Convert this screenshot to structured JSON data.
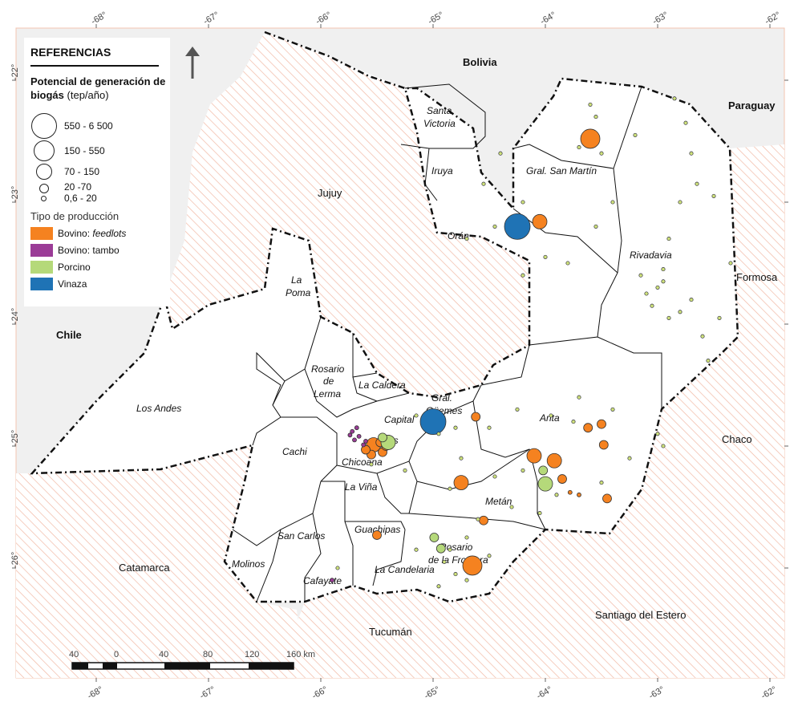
{
  "legend": {
    "title": "REFERENCIAS",
    "size_title": "Potencial de generación de biogás",
    "size_unit": "(tep/año)",
    "sizes": [
      {
        "label": "550 - 6 500"
      },
      {
        "label": "150 - 550"
      },
      {
        "label": "70 - 150"
      },
      {
        "label": "20 -70"
      },
      {
        "label": "0,6 - 20"
      }
    ],
    "type_title": "Tipo de producción",
    "types": [
      {
        "prefix": "Bovino: ",
        "label": "feedlots",
        "italic": true,
        "color": "#F58220"
      },
      {
        "prefix": "",
        "label": "Bovino: tambo",
        "italic": false,
        "color": "#9B3C97"
      },
      {
        "prefix": "",
        "label": "Porcino",
        "italic": false,
        "color": "#B5D97A"
      },
      {
        "prefix": "",
        "label": "Vinaza",
        "italic": false,
        "color": "#1F73B5"
      }
    ]
  },
  "axes": {
    "longitudes": [
      "-68°",
      "-67°",
      "-66°",
      "-65°",
      "-64°",
      "-63°",
      "-62°"
    ],
    "latitudes": [
      "-22°",
      "-23°",
      "-24°",
      "-25°",
      "-26°"
    ]
  },
  "countries": {
    "bolivia": "Bolivia",
    "paraguay": "Paraguay",
    "chile": "Chile"
  },
  "provinces": {
    "jujuy": "Jujuy",
    "formosa": "Formosa",
    "chaco": "Chaco",
    "catamarca": "Catamarca",
    "tucuman": "Tucumán",
    "santiago": "Santiago del Estero"
  },
  "departments": {
    "santa_victoria_1": "Santa",
    "santa_victoria_2": "Victoria",
    "iruya": "Iruya",
    "san_martin": "Gral. San Martín",
    "oran": "Orán",
    "rivadavia": "Rivadavia",
    "la_poma_1": "La",
    "la_poma_2": "Poma",
    "los_andes": "Los Andes",
    "rosario_lerma_1": "Rosario",
    "rosario_lerma_2": "de",
    "rosario_lerma_3": "Lerma",
    "la_caldera": "La Caldera",
    "guemes_1": "Gral.",
    "guemes_2": "Güemes",
    "capital": "Capital",
    "cerrillos": "rrillos",
    "anta": "Anta",
    "cachi": "Cachi",
    "chicoana": "Chicoana",
    "la_vina": "La Viña",
    "metan": "Metán",
    "guachipas": "Guachipas",
    "san_carlos": "San Carlos",
    "molinos": "Molinos",
    "rosario_frontera_1": "Rosario",
    "rosario_frontera_2": "de la Frontera",
    "la_candelaria": "La Candelaria",
    "cafayate": "Cafayate"
  },
  "scale": {
    "unit": "km",
    "labels": [
      "40",
      "0",
      "40",
      "80",
      "120",
      "160 km"
    ]
  },
  "points": [
    {
      "type": "vinaza",
      "size": 5,
      "lon": -64.25,
      "lat": -23.2
    },
    {
      "type": "vinaza",
      "size": 5,
      "lon": -65.0,
      "lat": -24.8
    },
    {
      "type": "feedlots",
      "size": 4,
      "lon": -63.6,
      "lat": -22.48
    },
    {
      "type": "feedlots",
      "size": 3,
      "lon": -64.05,
      "lat": -23.16
    },
    {
      "type": "feedlots",
      "size": 3,
      "lon": -63.92,
      "lat": -25.12
    },
    {
      "type": "feedlots",
      "size": 3,
      "lon": -64.1,
      "lat": -25.08
    },
    {
      "type": "feedlots",
      "size": 4,
      "lon": -64.65,
      "lat": -25.98
    },
    {
      "type": "feedlots",
      "size": 3,
      "lon": -64.75,
      "lat": -25.3
    },
    {
      "type": "feedlots",
      "size": 2,
      "lon": -64.62,
      "lat": -24.76
    },
    {
      "type": "feedlots",
      "size": 2,
      "lon": -63.5,
      "lat": -24.82
    },
    {
      "type": "feedlots",
      "size": 2,
      "lon": -63.48,
      "lat": -24.99
    },
    {
      "type": "feedlots",
      "size": 2,
      "lon": -63.85,
      "lat": -25.27
    },
    {
      "type": "feedlots",
      "size": 2,
      "lon": -63.45,
      "lat": -25.43
    },
    {
      "type": "feedlots",
      "size": 2,
      "lon": -64.55,
      "lat": -25.61
    },
    {
      "type": "feedlots",
      "size": 2,
      "lon": -65.5,
      "lat": -25.73
    },
    {
      "type": "feedlots",
      "size": 3,
      "lon": -65.53,
      "lat": -24.99
    },
    {
      "type": "feedlots",
      "size": 2,
      "lon": -65.47,
      "lat": -24.97
    },
    {
      "type": "feedlots",
      "size": 2,
      "lon": -65.45,
      "lat": -25.05
    },
    {
      "type": "feedlots",
      "size": 2,
      "lon": -65.55,
      "lat": -25.07
    },
    {
      "type": "feedlots",
      "size": 2,
      "lon": -65.42,
      "lat": -25.0
    },
    {
      "type": "feedlots",
      "size": 2,
      "lon": -65.6,
      "lat": -25.03
    },
    {
      "type": "feedlots",
      "size": 2,
      "lon": -63.62,
      "lat": -24.85
    },
    {
      "type": "feedlots",
      "size": 1,
      "lon": -63.78,
      "lat": -25.38
    },
    {
      "type": "feedlots",
      "size": 1,
      "lon": -63.7,
      "lat": -25.4
    },
    {
      "type": "porcino",
      "size": 3,
      "lon": -64.0,
      "lat": -25.31
    },
    {
      "type": "porcino",
      "size": 3,
      "lon": -65.4,
      "lat": -24.97
    },
    {
      "type": "porcino",
      "size": 2,
      "lon": -65.45,
      "lat": -24.93
    },
    {
      "type": "porcino",
      "size": 2,
      "lon": -64.93,
      "lat": -25.84
    },
    {
      "type": "porcino",
      "size": 2,
      "lon": -64.99,
      "lat": -25.75
    },
    {
      "type": "porcino",
      "size": 2,
      "lon": -64.02,
      "lat": -25.2
    },
    {
      "type": "tambo",
      "size": 1,
      "lon": -65.72,
      "lat": -24.88
    },
    {
      "type": "tambo",
      "size": 1,
      "lon": -65.7,
      "lat": -24.95
    },
    {
      "type": "tambo",
      "size": 1,
      "lon": -65.68,
      "lat": -24.85
    },
    {
      "type": "tambo",
      "size": 1,
      "lon": -65.74,
      "lat": -24.91
    },
    {
      "type": "tambo",
      "size": 1,
      "lon": -65.66,
      "lat": -24.92
    },
    {
      "type": "tambo",
      "size": 1,
      "lon": -65.6,
      "lat": -24.96
    },
    {
      "type": "tambo",
      "size": 1,
      "lon": -65.9,
      "lat": -26.1
    },
    {
      "type": "tambo",
      "size": 1,
      "lon": -65.62,
      "lat": -24.99
    }
  ]
}
